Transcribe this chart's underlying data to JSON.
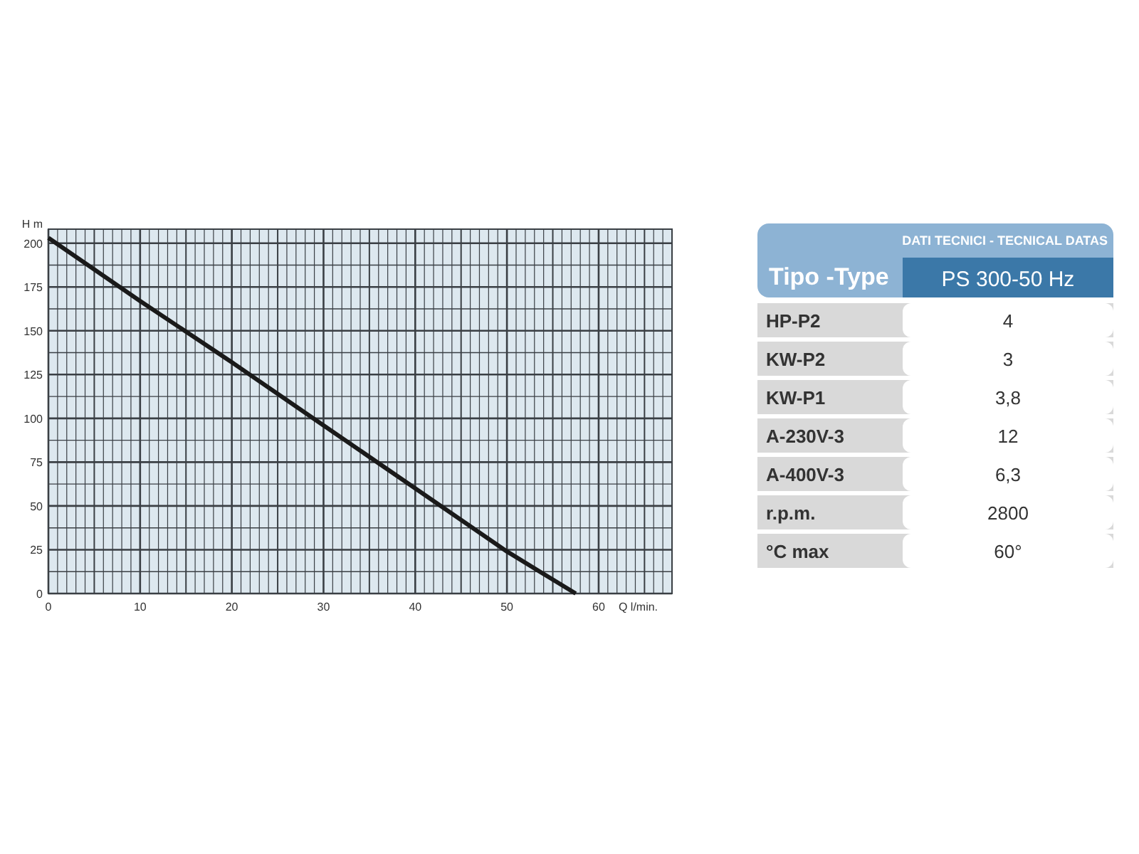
{
  "chart_data": [
    {
      "type": "line",
      "xlabel": "Q l/min.",
      "ylabel": "H m",
      "xlim": [
        0,
        68
      ],
      "ylim": [
        0,
        208
      ],
      "xticks": [
        0,
        10,
        20,
        30,
        40,
        50,
        60
      ],
      "yticks": [
        0,
        25,
        50,
        75,
        100,
        125,
        150,
        175,
        200
      ],
      "grid": true,
      "marker": "none",
      "line_style": "solid",
      "series": [
        {
          "color": "#1a1a1a",
          "x": [
            0,
            10,
            20,
            30,
            40,
            50,
            57.5
          ],
          "values": [
            203,
            167,
            132,
            96,
            60,
            24,
            0
          ]
        }
      ]
    },
    {
      "type": "other",
      "title": "DATI TECNICI - TECNICAL DATAS",
      "categories": [
        "Tipo -Type",
        "HP-P2",
        "KW-P2",
        "KW-P1",
        "A-230V-3",
        "A-400V-3",
        "r.p.m.",
        "°C max"
      ],
      "value_labels": [
        "PS 300-50 Hz",
        "4",
        "3",
        "3,8",
        "12",
        "6,3",
        "2800",
        "60°"
      ]
    }
  ]
}
